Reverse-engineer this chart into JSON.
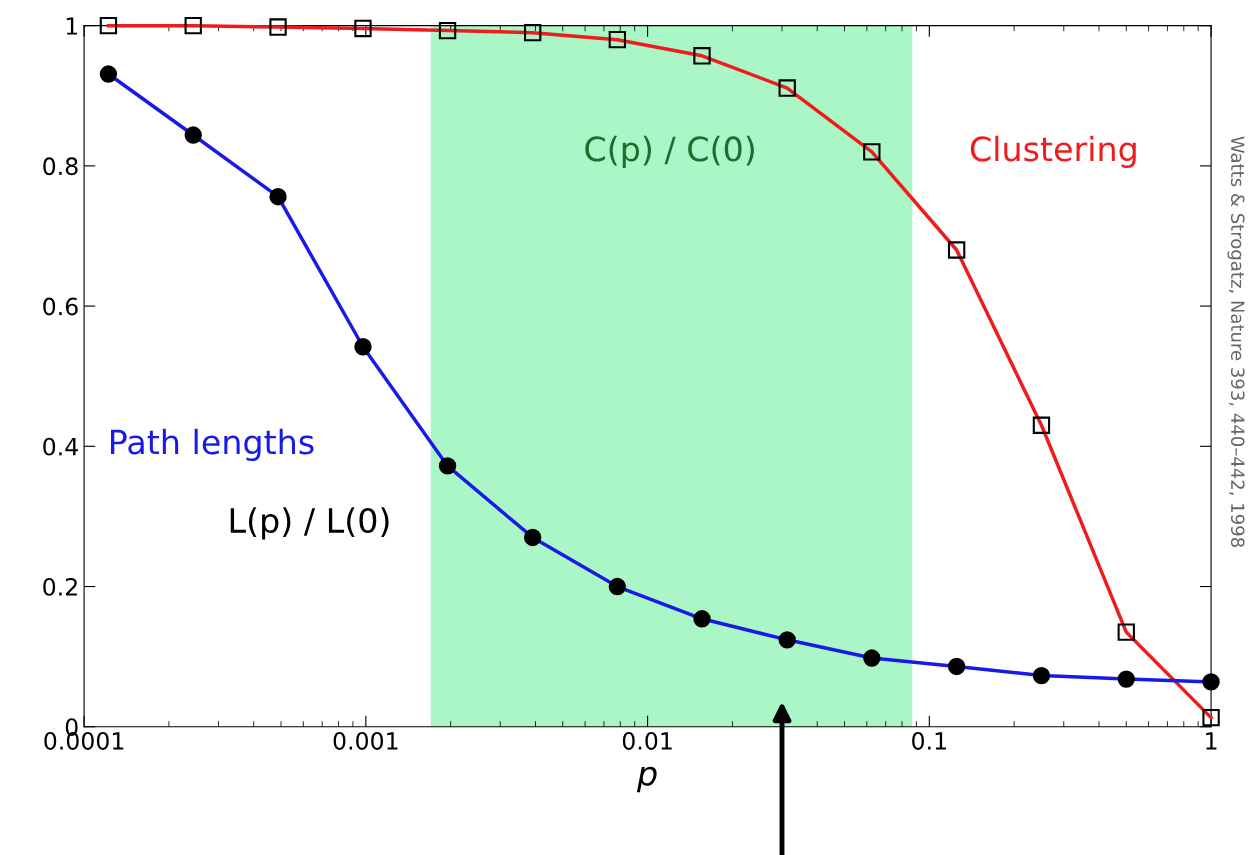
{
  "chart_data": {
    "type": "line",
    "xlabel": "p",
    "log": "x",
    "x": [
      0.000122,
      0.000244,
      0.000488,
      0.000977,
      0.00195,
      0.00391,
      0.00781,
      0.0156,
      0.0313,
      0.0625,
      0.125,
      0.25,
      0.5,
      1
    ],
    "series": [
      {
        "name": "Clustering",
        "color": "#ee1c1c",
        "marker": "square",
        "values": [
          1.0,
          1.0,
          0.998,
          0.996,
          0.993,
          0.99,
          0.98,
          0.957,
          0.911,
          0.82,
          0.68,
          0.43,
          0.135,
          0.013
        ]
      },
      {
        "name": "Path lengths",
        "color": "#1a1ae6",
        "marker": "circle",
        "values": [
          0.931,
          0.844,
          0.756,
          0.542,
          0.372,
          0.27,
          0.2,
          0.154,
          0.124,
          0.098,
          0.086,
          0.073,
          0.068,
          0.064
        ]
      }
    ],
    "xlim": [
      0.0001,
      1
    ],
    "ylim": [
      0,
      1
    ],
    "xticks": [
      {
        "value": 0.0001,
        "label": "0.0001"
      },
      {
        "value": 0.001,
        "label": "0.001"
      },
      {
        "value": 0.01,
        "label": "0.01"
      },
      {
        "value": 0.1,
        "label": "0.1"
      },
      1
    ],
    "yticks": [
      0,
      0.2,
      0.4,
      0.6,
      0.8,
      1
    ],
    "bands": [
      {
        "axis": "x",
        "from": 0.0017,
        "to": 0.087,
        "color": "#a6f5c4"
      }
    ],
    "annotations": [
      "C(p) / C(0)",
      "L(p) / L(0)",
      "Watts & Strogatz, Nature 393, 440–442, 1998"
    ],
    "grid": false
  }
}
